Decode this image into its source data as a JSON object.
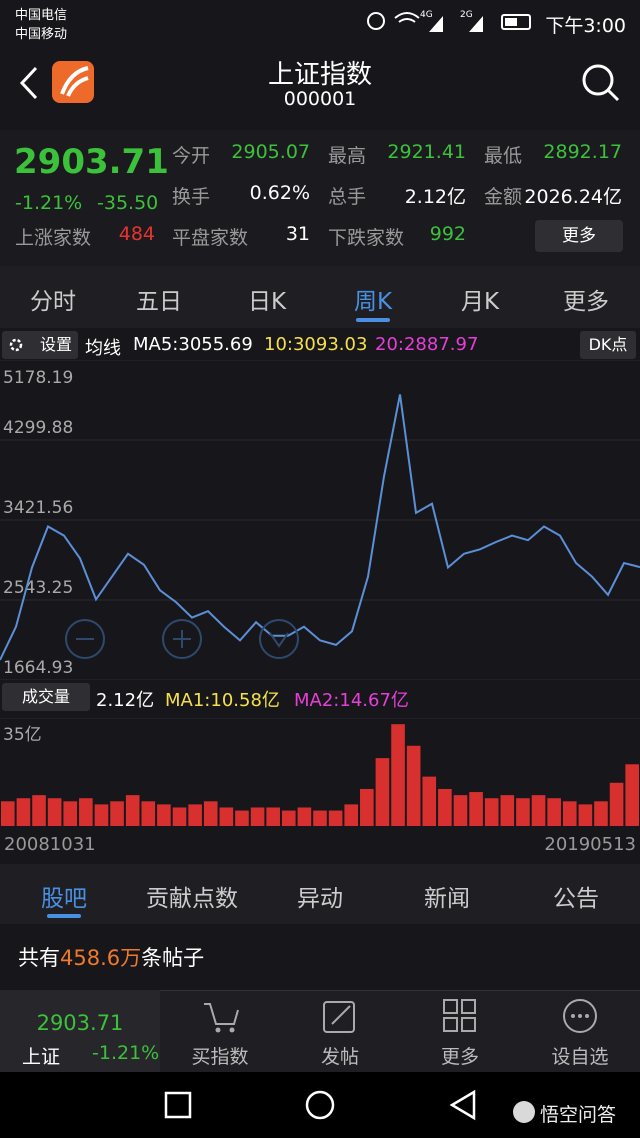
{
  "status": {
    "carrier1": "中国电信",
    "carrier2": "中国移动",
    "net1": "4G",
    "net2": "2G",
    "time": "下午3:00"
  },
  "header": {
    "title": "上证指数",
    "code": "000001"
  },
  "quote": {
    "price": "2903.71",
    "change_pct": "-1.21%",
    "change": "-35.50",
    "stats": [
      {
        "label": "今开",
        "value": "2905.07",
        "color": "#3cc13b"
      },
      {
        "label": "最高",
        "value": "2921.41",
        "color": "#3cc13b"
      },
      {
        "label": "最低",
        "value": "2892.17",
        "color": "#3cc13b"
      },
      {
        "label": "换手",
        "value": "0.62%",
        "color": "#ffffff"
      },
      {
        "label": "总手",
        "value": "2.12亿",
        "color": "#ffffff"
      },
      {
        "label": "金额",
        "value": "2026.24亿",
        "color": "#ffffff"
      },
      {
        "label": "上涨家数",
        "value": "484",
        "color": "#e8322f"
      },
      {
        "label": "平盘家数",
        "value": "31",
        "color": "#ffffff"
      },
      {
        "label": "下跌家数",
        "value": "992",
        "color": "#3cc13b"
      }
    ],
    "more": "更多"
  },
  "tabs": {
    "items": [
      "分时",
      "五日",
      "日K",
      "周K",
      "月K",
      "更多"
    ],
    "selected": 3
  },
  "chart_legend": {
    "settings": "设置",
    "ma_label": "均线",
    "ma5": "MA5:3055.69",
    "ma10": "10:3093.03",
    "ma20": "20:2887.97",
    "dk": "DK点"
  },
  "price_chart": {
    "type": "line",
    "color": "#5b8fd8",
    "ylim": [
      1664.93,
      5178.19
    ],
    "yticks": [
      1664.93,
      2543.25,
      3421.56,
      4299.88,
      5178.19
    ],
    "grid": true,
    "values": [
      1885,
      2250,
      2900,
      3350,
      3250,
      3000,
      2550,
      2800,
      3050,
      2930,
      2650,
      2520,
      2350,
      2420,
      2250,
      2100,
      2300,
      2150,
      2150,
      2250,
      2100,
      2050,
      2200,
      2800,
      3900,
      4800,
      3500,
      3600,
      2900,
      3050,
      3100,
      3180,
      3250,
      3200,
      3350,
      3250,
      2950,
      2800,
      2600,
      2950,
      2904
    ]
  },
  "volume_legend": {
    "button": "成交量",
    "total": "2.12亿",
    "ma1": "MA1:10.58亿",
    "ma2": "MA2:14.67亿"
  },
  "volume_chart": {
    "type": "bar",
    "color": "#d8302e",
    "ylim": [
      0,
      35
    ],
    "yticks": [
      {
        "value": 35,
        "label": "35亿"
      }
    ],
    "values": [
      8,
      9,
      10,
      9,
      8,
      9,
      7,
      8,
      10,
      8,
      7,
      6,
      7,
      8,
      6,
      5,
      6,
      6,
      5,
      6,
      5,
      5,
      7,
      12,
      22,
      33,
      26,
      16,
      12,
      10,
      11,
      9,
      10,
      9,
      10,
      9,
      8,
      7,
      8,
      14,
      20
    ]
  },
  "dates": {
    "start": "20081031",
    "end": "20190513"
  },
  "sections": {
    "items": [
      "股吧",
      "贡献点数",
      "异动",
      "新闻",
      "公告"
    ],
    "selected": 0
  },
  "posts": {
    "prefix": "共有",
    "count": "458.6万",
    "suffix": "条帖子"
  },
  "bottom": {
    "price": "2903.71",
    "name": "上证",
    "pct": "-1.21%",
    "actions": [
      "买指数",
      "发帖",
      "更多",
      "设自选"
    ]
  },
  "watermark": "悟空问答"
}
